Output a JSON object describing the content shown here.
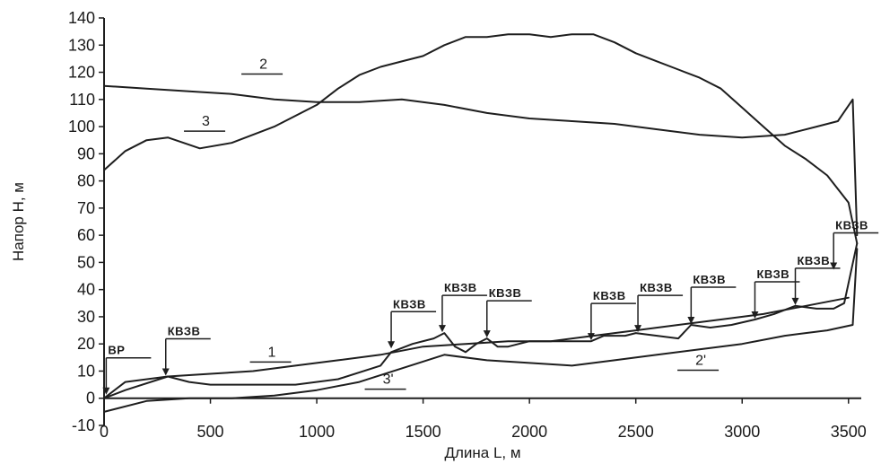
{
  "chart_data": {
    "type": "line",
    "title": "",
    "xlabel": "Длина L, м",
    "ylabel": "Напор Н, м",
    "xlim": [
      0,
      3560
    ],
    "ylim": [
      -10,
      140
    ],
    "x_ticks": [
      0,
      500,
      1000,
      1500,
      2000,
      2500,
      3000,
      3500
    ],
    "y_ticks": [
      -10,
      0,
      10,
      20,
      30,
      40,
      50,
      60,
      70,
      80,
      90,
      100,
      110,
      120,
      130,
      140
    ],
    "x_tick_labels": [
      "0",
      "500",
      "1000",
      "1500",
      "2000",
      "2500",
      "3000",
      "3500"
    ],
    "y_tick_labels": [
      "-10",
      "0",
      "10",
      "20",
      "30",
      "40",
      "50",
      "60",
      "70",
      "80",
      "90",
      "100",
      "110",
      "120",
      "130",
      "140"
    ],
    "grid": false,
    "series": [
      {
        "name": "2",
        "label_xy": [
          730,
          120
        ],
        "x": [
          0,
          200,
          400,
          600,
          800,
          1000,
          1200,
          1400,
          1600,
          1800,
          2000,
          2200,
          2400,
          2600,
          2800,
          3000,
          3200,
          3350,
          3450,
          3520,
          3540
        ],
        "y": [
          115,
          114,
          113,
          112,
          110,
          109,
          109,
          110,
          108,
          105,
          103,
          102,
          101,
          99,
          97,
          96,
          97,
          100,
          102,
          110,
          60
        ]
      },
      {
        "name": "3",
        "label_xy": [
          460,
          99
        ],
        "x": [
          0,
          100,
          200,
          300,
          450,
          600,
          800,
          1000,
          1100,
          1200,
          1300,
          1400,
          1500,
          1600,
          1700,
          1800,
          1900,
          2000,
          2100,
          2200,
          2300,
          2400,
          2500,
          2600,
          2700,
          2800,
          2900,
          3000,
          3100,
          3200,
          3300,
          3400,
          3500,
          3540
        ],
        "y": [
          84,
          91,
          95,
          96,
          92,
          94,
          100,
          108,
          114,
          119,
          122,
          124,
          126,
          130,
          133,
          133,
          134,
          134,
          133,
          134,
          134,
          131,
          127,
          124,
          121,
          118,
          114,
          107,
          100,
          93,
          88,
          82,
          72,
          57
        ]
      },
      {
        "name": "1",
        "label_xy": [
          770,
          14
        ],
        "x": [
          0,
          100,
          300,
          500,
          700,
          900,
          1100,
          1300,
          1500,
          1700,
          1900,
          2100,
          2300,
          2500,
          2700,
          2900,
          3100,
          3300,
          3500
        ],
        "y": [
          0,
          6,
          8,
          9,
          10,
          12,
          14,
          16,
          19,
          20,
          21,
          21,
          23,
          25,
          27,
          29,
          31,
          34,
          37
        ]
      },
      {
        "name": "2'",
        "label_xy": [
          2780,
          11
        ],
        "x": [
          0,
          200,
          400,
          600,
          800,
          1000,
          1200,
          1400,
          1600,
          1800,
          2000,
          2200,
          2400,
          2600,
          2800,
          3000,
          3200,
          3400,
          3520,
          3540
        ],
        "y": [
          -5,
          -1,
          0,
          0,
          1,
          3,
          6,
          11,
          16,
          14,
          13,
          12,
          14,
          16,
          18,
          20,
          23,
          25,
          27,
          55
        ]
      },
      {
        "name": "3'",
        "label_xy": [
          1310,
          4
        ],
        "x": [
          0,
          100,
          300,
          400,
          500,
          700,
          900,
          1100,
          1300,
          1350,
          1450,
          1550,
          1600,
          1650,
          1700,
          1750,
          1800,
          1850,
          1900,
          2000,
          2100,
          2200,
          2290,
          2350,
          2450,
          2500,
          2600,
          2700,
          2760,
          2850,
          2950,
          3060,
          3150,
          3250,
          3350,
          3430,
          3480,
          3540
        ],
        "y": [
          0,
          3,
          8,
          6,
          5,
          5,
          5,
          7,
          12,
          17,
          20,
          22,
          24,
          19,
          17,
          20,
          22,
          19,
          19,
          21,
          21,
          21,
          21,
          23,
          23,
          24,
          23,
          22,
          27,
          26,
          27,
          29,
          31,
          34,
          33,
          33,
          35,
          57
        ]
      }
    ],
    "annotations": [
      {
        "text": "ВР",
        "x": 10,
        "y": 1
      },
      {
        "text": "КВЗВ",
        "x": 290,
        "y": 8
      },
      {
        "text": "КВЗВ",
        "x": 1350,
        "y": 18
      },
      {
        "text": "КВЗВ",
        "x": 1590,
        "y": 24
      },
      {
        "text": "КВЗВ",
        "x": 1800,
        "y": 22
      },
      {
        "text": "КВЗВ",
        "x": 2290,
        "y": 21
      },
      {
        "text": "КВЗВ",
        "x": 2510,
        "y": 24
      },
      {
        "text": "КВЗВ",
        "x": 2760,
        "y": 27
      },
      {
        "text": "КВЗВ",
        "x": 3060,
        "y": 29
      },
      {
        "text": "КВЗВ",
        "x": 3250,
        "y": 34
      },
      {
        "text": "КВЗВ",
        "x": 3430,
        "y": 47
      }
    ]
  }
}
